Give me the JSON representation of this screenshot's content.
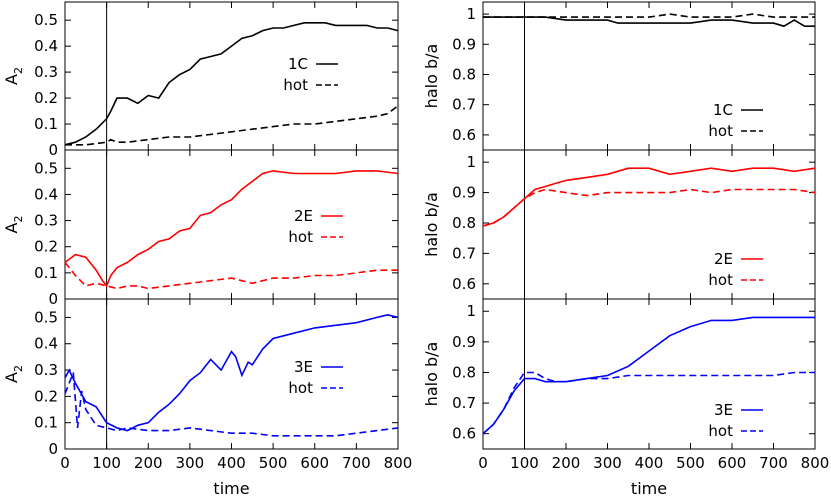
{
  "chart_data": [
    {
      "type": "line",
      "xlabel": "",
      "ylabel": "A2",
      "ylabel_main": "A",
      "ylabel_sub": "2",
      "xlim": [
        0,
        800
      ],
      "ylim": [
        0,
        0.57
      ],
      "yticks": [
        "0",
        "0.1",
        "0.2",
        "0.3",
        "0.4",
        "0.5"
      ],
      "vline_x": 100,
      "color": "#000000",
      "legend": "bottom-right",
      "series": [
        {
          "name": "1C",
          "dash": "solid",
          "x": [
            0,
            25,
            50,
            75,
            100,
            110,
            125,
            150,
            175,
            200,
            225,
            250,
            275,
            300,
            325,
            350,
            375,
            400,
            425,
            450,
            475,
            500,
            525,
            550,
            575,
            600,
            625,
            650,
            675,
            700,
            725,
            750,
            775,
            800
          ],
          "values": [
            0.02,
            0.03,
            0.05,
            0.08,
            0.12,
            0.15,
            0.2,
            0.2,
            0.18,
            0.21,
            0.2,
            0.26,
            0.29,
            0.31,
            0.35,
            0.36,
            0.37,
            0.4,
            0.43,
            0.44,
            0.46,
            0.47,
            0.47,
            0.48,
            0.49,
            0.49,
            0.49,
            0.48,
            0.48,
            0.48,
            0.48,
            0.47,
            0.47,
            0.46
          ]
        },
        {
          "name": "hot",
          "dash": "dashed",
          "x": [
            0,
            50,
            100,
            110,
            125,
            150,
            200,
            250,
            300,
            350,
            400,
            450,
            500,
            550,
            600,
            650,
            700,
            750,
            775,
            800
          ],
          "values": [
            0.02,
            0.02,
            0.03,
            0.04,
            0.03,
            0.03,
            0.04,
            0.05,
            0.05,
            0.06,
            0.07,
            0.08,
            0.09,
            0.1,
            0.1,
            0.11,
            0.12,
            0.13,
            0.14,
            0.17
          ]
        }
      ]
    },
    {
      "type": "line",
      "xlabel": "",
      "ylabel": "halo b/a",
      "xlim": [
        0,
        800
      ],
      "ylim": [
        0.55,
        1.04
      ],
      "yticks": [
        "0.6",
        "0.7",
        "0.8",
        "0.9",
        "1"
      ],
      "vline_x": 100,
      "color": "#000000",
      "legend": "bottom-right",
      "series": [
        {
          "name": "1C",
          "dash": "solid",
          "x": [
            0,
            50,
            100,
            150,
            200,
            250,
            300,
            325,
            350,
            400,
            450,
            500,
            550,
            600,
            650,
            700,
            725,
            750,
            775,
            800
          ],
          "values": [
            0.99,
            0.99,
            0.99,
            0.99,
            0.98,
            0.98,
            0.98,
            0.97,
            0.97,
            0.97,
            0.97,
            0.97,
            0.98,
            0.98,
            0.97,
            0.97,
            0.96,
            0.98,
            0.96,
            0.96
          ]
        },
        {
          "name": "hot",
          "dash": "dashed",
          "x": [
            0,
            50,
            100,
            150,
            200,
            250,
            300,
            350,
            400,
            450,
            500,
            550,
            600,
            650,
            700,
            750,
            800
          ],
          "values": [
            0.99,
            0.99,
            0.99,
            0.99,
            0.99,
            0.99,
            0.99,
            0.99,
            0.99,
            1.0,
            0.99,
            0.99,
            0.99,
            1.0,
            0.99,
            0.99,
            0.99
          ]
        }
      ]
    },
    {
      "type": "line",
      "xlabel": "",
      "ylabel": "A2",
      "ylabel_main": "A",
      "ylabel_sub": "2",
      "xlim": [
        0,
        800
      ],
      "ylim": [
        0,
        0.57
      ],
      "yticks": [
        "0",
        "0.1",
        "0.2",
        "0.3",
        "0.4",
        "0.5"
      ],
      "vline_x": 100,
      "color": "#ff0000",
      "legend": "right",
      "series": [
        {
          "name": "2E",
          "dash": "solid",
          "x": [
            0,
            25,
            50,
            75,
            90,
            100,
            110,
            125,
            150,
            175,
            200,
            225,
            250,
            275,
            300,
            325,
            350,
            375,
            400,
            425,
            450,
            475,
            500,
            550,
            600,
            650,
            700,
            750,
            800
          ],
          "values": [
            0.14,
            0.17,
            0.16,
            0.11,
            0.07,
            0.05,
            0.09,
            0.12,
            0.14,
            0.17,
            0.19,
            0.22,
            0.23,
            0.26,
            0.27,
            0.32,
            0.33,
            0.36,
            0.38,
            0.42,
            0.45,
            0.48,
            0.49,
            0.48,
            0.48,
            0.48,
            0.49,
            0.49,
            0.48
          ]
        },
        {
          "name": "hot",
          "dash": "dashed",
          "x": [
            0,
            25,
            50,
            75,
            100,
            125,
            150,
            175,
            200,
            250,
            300,
            350,
            400,
            450,
            500,
            550,
            600,
            650,
            700,
            750,
            800
          ],
          "values": [
            0.14,
            0.09,
            0.05,
            0.06,
            0.05,
            0.04,
            0.05,
            0.05,
            0.04,
            0.05,
            0.06,
            0.07,
            0.08,
            0.06,
            0.08,
            0.08,
            0.09,
            0.09,
            0.1,
            0.11,
            0.11
          ]
        }
      ]
    },
    {
      "type": "line",
      "xlabel": "",
      "ylabel": "halo b/a",
      "xlim": [
        0,
        800
      ],
      "ylim": [
        0.55,
        1.04
      ],
      "yticks": [
        "0.6",
        "0.7",
        "0.8",
        "0.9",
        "1"
      ],
      "vline_x": 100,
      "color": "#ff0000",
      "legend": "bottom-right",
      "series": [
        {
          "name": "2E",
          "dash": "solid",
          "x": [
            0,
            25,
            50,
            75,
            100,
            125,
            150,
            175,
            200,
            250,
            300,
            350,
            400,
            425,
            450,
            500,
            550,
            600,
            650,
            700,
            750,
            800
          ],
          "values": [
            0.79,
            0.8,
            0.82,
            0.85,
            0.88,
            0.91,
            0.92,
            0.93,
            0.94,
            0.95,
            0.96,
            0.98,
            0.98,
            0.97,
            0.96,
            0.97,
            0.98,
            0.97,
            0.98,
            0.98,
            0.97,
            0.98
          ]
        },
        {
          "name": "hot",
          "dash": "dashed",
          "x": [
            0,
            25,
            50,
            75,
            100,
            125,
            150,
            200,
            250,
            300,
            350,
            400,
            450,
            500,
            550,
            600,
            650,
            700,
            750,
            800
          ],
          "values": [
            0.79,
            0.8,
            0.82,
            0.85,
            0.88,
            0.9,
            0.91,
            0.9,
            0.89,
            0.9,
            0.9,
            0.9,
            0.9,
            0.91,
            0.9,
            0.91,
            0.91,
            0.91,
            0.91,
            0.9
          ]
        }
      ]
    },
    {
      "type": "line",
      "xlabel": "time",
      "ylabel": "A2",
      "ylabel_main": "A",
      "ylabel_sub": "2",
      "xlim": [
        0,
        800
      ],
      "ylim": [
        0,
        0.57
      ],
      "yticks": [
        "0",
        "0.1",
        "0.2",
        "0.3",
        "0.4",
        "0.5"
      ],
      "xticks": [
        "0",
        "100",
        "200",
        "300",
        "400",
        "500",
        "600",
        "700",
        "800"
      ],
      "vline_x": 100,
      "color": "#0000ff",
      "legend": "right",
      "series": [
        {
          "name": "3E",
          "dash": "solid",
          "x": [
            0,
            10,
            25,
            50,
            75,
            100,
            125,
            150,
            175,
            200,
            225,
            250,
            275,
            300,
            325,
            350,
            375,
            400,
            410,
            425,
            440,
            450,
            475,
            500,
            550,
            600,
            650,
            700,
            750,
            775,
            800
          ],
          "values": [
            0.27,
            0.3,
            0.25,
            0.18,
            0.16,
            0.1,
            0.08,
            0.07,
            0.09,
            0.1,
            0.14,
            0.17,
            0.21,
            0.26,
            0.29,
            0.34,
            0.3,
            0.37,
            0.35,
            0.28,
            0.33,
            0.32,
            0.38,
            0.42,
            0.44,
            0.46,
            0.47,
            0.48,
            0.5,
            0.51,
            0.5
          ]
        },
        {
          "name": "hot",
          "dash": "dashed",
          "x": [
            0,
            20,
            30,
            40,
            50,
            75,
            100,
            125,
            150,
            200,
            250,
            300,
            350,
            400,
            450,
            500,
            550,
            600,
            650,
            700,
            750,
            800
          ],
          "values": [
            0.21,
            0.29,
            0.08,
            0.22,
            0.15,
            0.09,
            0.08,
            0.07,
            0.08,
            0.07,
            0.07,
            0.08,
            0.07,
            0.06,
            0.06,
            0.05,
            0.05,
            0.05,
            0.05,
            0.06,
            0.07,
            0.08
          ]
        }
      ]
    },
    {
      "type": "line",
      "xlabel": "time",
      "ylabel": "halo b/a",
      "xlim": [
        0,
        800
      ],
      "ylim": [
        0.55,
        1.04
      ],
      "yticks": [
        "0.6",
        "0.7",
        "0.8",
        "0.9",
        "1"
      ],
      "xticks": [
        "0",
        "100",
        "200",
        "300",
        "400",
        "500",
        "600",
        "700",
        "800"
      ],
      "vline_x": 100,
      "color": "#0000ff",
      "legend": "bottom-right",
      "series": [
        {
          "name": "3E",
          "dash": "solid",
          "x": [
            0,
            25,
            50,
            75,
            100,
            125,
            150,
            175,
            200,
            250,
            300,
            350,
            400,
            450,
            500,
            550,
            600,
            650,
            700,
            750,
            800
          ],
          "values": [
            0.6,
            0.63,
            0.68,
            0.74,
            0.78,
            0.78,
            0.77,
            0.77,
            0.77,
            0.78,
            0.79,
            0.82,
            0.87,
            0.92,
            0.95,
            0.97,
            0.97,
            0.98,
            0.98,
            0.98,
            0.98
          ]
        },
        {
          "name": "hot",
          "dash": "dashed",
          "x": [
            0,
            25,
            50,
            75,
            100,
            125,
            150,
            175,
            200,
            250,
            300,
            350,
            400,
            450,
            500,
            550,
            600,
            650,
            700,
            750,
            800
          ],
          "values": [
            0.6,
            0.63,
            0.68,
            0.75,
            0.8,
            0.8,
            0.78,
            0.77,
            0.77,
            0.78,
            0.78,
            0.79,
            0.79,
            0.79,
            0.79,
            0.79,
            0.79,
            0.79,
            0.79,
            0.8,
            0.8
          ]
        }
      ]
    }
  ]
}
